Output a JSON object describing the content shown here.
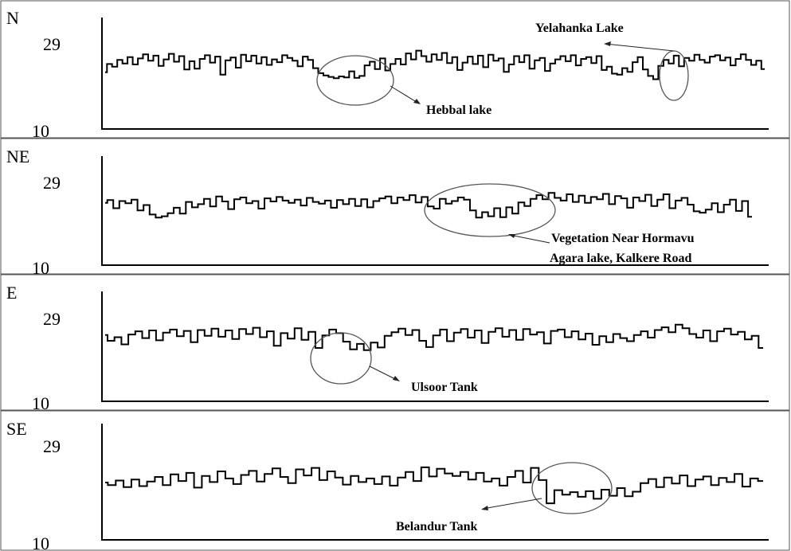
{
  "chart_data": [
    {
      "type": "line",
      "panel_label": "N",
      "yticks": [
        "29",
        "10"
      ],
      "ylim": [
        10,
        29
      ],
      "series": [
        {
          "values": [
            22.3,
            24.1,
            23.5,
            25.0,
            24.2,
            25.6,
            24.0,
            25.3,
            26.2,
            24.8,
            25.9,
            23.7,
            25.1,
            26.3,
            24.6,
            25.8,
            22.9,
            24.7,
            23.1,
            25.2,
            26.0,
            24.4,
            25.7,
            21.8,
            24.9,
            25.5,
            23.3,
            26.1,
            24.7,
            25.9,
            24.2,
            25.6,
            23.9,
            25.1,
            24.5,
            26.0,
            25.4,
            24.8,
            23.6,
            25.7,
            25.0,
            23.2,
            22.1,
            21.6,
            21.3,
            21.0,
            21.4,
            21.2,
            22.5,
            21.1,
            21.5,
            23.8,
            24.6,
            23.0,
            25.3,
            22.7,
            24.1,
            25.2,
            24.0,
            26.4,
            25.1,
            27.0,
            25.8,
            24.6,
            26.2,
            25.0,
            26.5,
            24.3,
            25.6,
            22.8,
            24.4,
            25.7,
            24.1,
            25.9,
            23.4,
            26.1,
            24.8,
            25.3,
            22.4,
            24.0,
            25.8,
            24.5,
            26.0,
            23.1,
            24.9,
            25.4,
            22.6,
            24.2,
            25.1,
            25.8,
            24.7,
            26.0,
            23.8,
            25.2,
            25.6,
            24.3,
            25.8,
            22.8,
            23.5,
            22.0,
            21.8,
            23.2,
            22.4,
            24.5,
            25.6,
            22.9,
            21.5,
            20.8,
            23.7,
            25.0,
            24.2,
            25.9,
            23.6,
            25.4,
            24.8,
            26.1,
            25.0,
            24.4,
            25.7,
            26.0,
            24.9,
            25.5,
            23.8,
            25.2,
            26.2,
            25.0,
            23.9,
            24.8,
            23.0
          ],
          "color": "#000000"
        }
      ],
      "annotations": [
        {
          "text": "Hebbal lake",
          "target_index": 43
        },
        {
          "text": "Yelahanka Lake",
          "target_index": 104
        }
      ]
    },
    {
      "type": "line",
      "panel_label": "NE",
      "yticks": [
        "29",
        "10"
      ],
      "ylim": [
        10,
        29
      ],
      "series": [
        {
          "values": [
            23.9,
            24.5,
            22.7,
            24.3,
            23.8,
            24.6,
            22.2,
            23.4,
            21.3,
            20.6,
            20.9,
            21.6,
            22.8,
            21.5,
            24.1,
            22.9,
            23.6,
            24.8,
            23.1,
            25.3,
            24.2,
            22.5,
            24.7,
            25.1,
            23.8,
            24.3,
            22.6,
            24.9,
            24.2,
            25.2,
            24.4,
            23.9,
            24.6,
            23.3,
            25.0,
            24.1,
            23.7,
            24.4,
            22.8,
            24.5,
            23.6,
            24.8,
            23.2,
            24.7,
            22.9,
            24.3,
            24.9,
            25.3,
            23.8,
            25.1,
            24.5,
            25.6,
            24.0,
            25.2,
            23.1,
            22.6,
            24.8,
            23.7,
            24.3,
            25.1,
            24.6,
            22.2,
            20.6,
            21.8,
            20.9,
            22.7,
            20.7,
            22.9,
            21.5,
            24.0,
            23.2,
            24.8,
            25.6,
            24.7,
            26.1,
            25.0,
            24.4,
            25.8,
            24.1,
            25.5,
            23.9,
            25.2,
            24.7,
            25.9,
            23.6,
            25.4,
            24.9,
            22.8,
            25.1,
            24.3,
            25.7,
            23.2,
            24.6,
            25.8,
            22.7,
            24.4,
            25.0,
            23.5,
            22.0,
            21.7,
            22.4,
            23.8,
            21.8,
            23.5,
            24.6,
            22.1,
            24.3,
            20.8
          ],
          "color": "#000000"
        }
      ],
      "annotations": [
        {
          "text": "Vegetation Near Hormavu",
          "target_index": 58
        },
        {
          "text": "Agara lake, Kalkere Road",
          "target_index": 58
        }
      ]
    },
    {
      "type": "line",
      "panel_label": "E",
      "yticks": [
        "29",
        "10"
      ],
      "ylim": [
        10,
        29
      ],
      "series": [
        {
          "values": [
            24.8,
            23.5,
            24.3,
            22.7,
            24.9,
            25.6,
            24.1,
            25.8,
            23.6,
            25.3,
            26.0,
            24.5,
            25.7,
            23.2,
            25.9,
            24.6,
            26.2,
            24.4,
            25.8,
            23.9,
            26.1,
            25.0,
            26.4,
            24.3,
            25.6,
            22.4,
            25.2,
            24.0,
            26.3,
            23.7,
            25.5,
            21.9,
            24.7,
            26.0,
            25.2,
            23.3,
            21.6,
            22.8,
            21.4,
            23.1,
            22.0,
            24.6,
            25.4,
            26.2,
            24.8,
            25.9,
            23.5,
            22.1,
            24.7,
            26.0,
            23.4,
            25.3,
            26.1,
            24.2,
            25.8,
            23.0,
            25.5,
            26.3,
            24.4,
            25.9,
            23.7,
            26.1,
            24.9,
            25.4,
            22.9,
            25.7,
            26.0,
            24.3,
            25.6,
            23.8,
            25.1,
            22.6,
            24.5,
            23.2,
            25.0,
            24.1,
            23.4,
            24.8,
            25.6,
            24.2,
            25.9,
            26.5,
            25.4,
            27.1,
            26.3,
            25.0,
            24.2,
            25.8,
            23.4,
            25.6,
            26.2,
            24.9,
            25.5,
            23.8,
            24.6,
            21.9
          ],
          "color": "#000000"
        }
      ],
      "annotations": [
        {
          "text": "Ulsoor Tank",
          "target_index": 39
        }
      ]
    },
    {
      "type": "line",
      "panel_label": "SE",
      "yticks": [
        "29",
        "10"
      ],
      "ylim": [
        10,
        29
      ],
      "series": [
        {
          "values": [
            21.3,
            20.8,
            21.7,
            20.4,
            21.9,
            20.6,
            21.5,
            22.4,
            20.8,
            22.9,
            21.6,
            23.2,
            20.3,
            22.6,
            21.4,
            23.5,
            22.1,
            21.0,
            22.8,
            23.6,
            21.5,
            23.0,
            24.1,
            22.4,
            21.2,
            23.9,
            22.7,
            24.2,
            21.8,
            23.5,
            22.3,
            20.9,
            22.6,
            21.4,
            22.1,
            21.0,
            22.5,
            20.7,
            22.3,
            23.4,
            21.6,
            24.3,
            22.5,
            24.0,
            23.1,
            22.6,
            23.4,
            21.9,
            23.2,
            21.5,
            22.1,
            20.7,
            22.4,
            23.6,
            21.3,
            24.2,
            21.8,
            17.2,
            19.8,
            18.9,
            19.4,
            18.5,
            19.6,
            18.1,
            19.9,
            18.7,
            20.2,
            18.6,
            19.5,
            21.2,
            22.0,
            20.4,
            22.3,
            21.1,
            22.7,
            20.6,
            21.9,
            22.5,
            20.8,
            22.2,
            21.4,
            23.0,
            20.5,
            22.1,
            21.6
          ],
          "color": "#000000"
        }
      ],
      "annotations": [
        {
          "text": "Belandur Tank",
          "target_index": 58
        }
      ]
    }
  ]
}
